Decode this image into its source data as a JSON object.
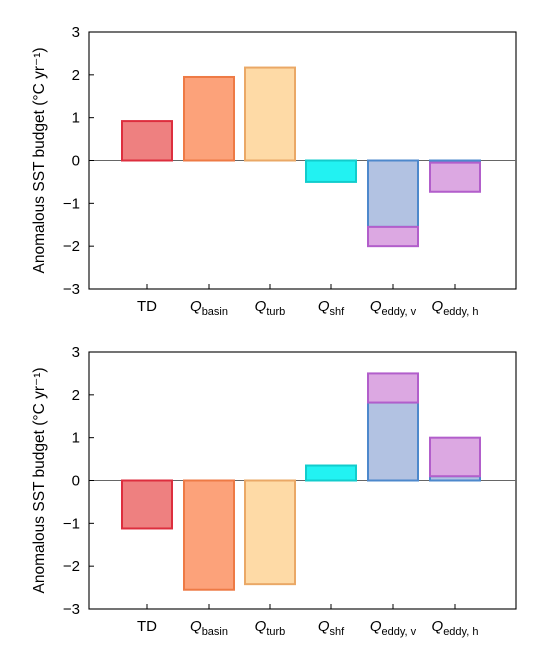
{
  "chart_data": [
    {
      "type": "bar",
      "title": "",
      "xlabel": "",
      "ylabel": "Anomalous SST budget (°C yr⁻¹)",
      "ylim": [
        -3,
        3
      ],
      "yticks": [
        -3,
        -2,
        -1,
        0,
        1,
        2,
        3
      ],
      "grid": false,
      "zero_line": true,
      "categories": [
        {
          "main": "TD",
          "sub": "",
          "italic": false
        },
        {
          "main": "Q",
          "sub": "basin",
          "italic": true
        },
        {
          "main": "Q",
          "sub": "turb",
          "italic": true
        },
        {
          "main": "Q",
          "sub": "shf",
          "italic": true
        },
        {
          "main": "Q",
          "sub": "eddy, v",
          "italic": true
        },
        {
          "main": "Q",
          "sub": "eddy, h",
          "italic": true
        }
      ],
      "bars": [
        {
          "segments": [
            {
              "value": 0.92,
              "fill": "#ee8080",
              "stroke": "#dd2e3e"
            }
          ]
        },
        {
          "segments": [
            {
              "value": 1.95,
              "fill": "#fca27a",
              "stroke": "#ee7a45"
            }
          ]
        },
        {
          "segments": [
            {
              "value": 2.17,
              "fill": "#fedaa6",
              "stroke": "#eaa866"
            }
          ]
        },
        {
          "segments": [
            {
              "value": -0.5,
              "fill": "#22f2f2",
              "stroke": "#12cccc"
            }
          ]
        },
        {
          "segments": [
            {
              "value": -1.55,
              "fill": "#b2c2e2",
              "stroke": "#4d88cc"
            },
            {
              "value": -0.45,
              "fill": "#dca8e2",
              "stroke": "#b25ecb"
            }
          ]
        },
        {
          "segments": [
            {
              "value": -0.05,
              "fill": "#b2c2e2",
              "stroke": "#4d88cc"
            },
            {
              "value": -0.68,
              "fill": "#dca8e2",
              "stroke": "#b25ecb"
            }
          ]
        }
      ]
    },
    {
      "type": "bar",
      "title": "",
      "xlabel": "",
      "ylabel": "Anomalous SST budget (°C yr⁻¹)",
      "ylim": [
        -3,
        3
      ],
      "yticks": [
        -3,
        -2,
        -1,
        0,
        1,
        2,
        3
      ],
      "grid": false,
      "zero_line": true,
      "categories": [
        {
          "main": "TD",
          "sub": "",
          "italic": false
        },
        {
          "main": "Q",
          "sub": "basin",
          "italic": true
        },
        {
          "main": "Q",
          "sub": "turb",
          "italic": true
        },
        {
          "main": "Q",
          "sub": "shf",
          "italic": true
        },
        {
          "main": "Q",
          "sub": "eddy, v",
          "italic": true
        },
        {
          "main": "Q",
          "sub": "eddy, h",
          "italic": true
        }
      ],
      "bars": [
        {
          "segments": [
            {
              "value": -1.12,
              "fill": "#ee8080",
              "stroke": "#dd2e3e"
            }
          ]
        },
        {
          "segments": [
            {
              "value": -2.55,
              "fill": "#fca27a",
              "stroke": "#ee7a45"
            }
          ]
        },
        {
          "segments": [
            {
              "value": -2.42,
              "fill": "#fedaa6",
              "stroke": "#eaa866"
            }
          ]
        },
        {
          "segments": [
            {
              "value": 0.35,
              "fill": "#22f2f2",
              "stroke": "#12cccc"
            }
          ]
        },
        {
          "segments": [
            {
              "value": 1.82,
              "fill": "#b2c2e2",
              "stroke": "#4d88cc"
            },
            {
              "value": 0.68,
              "fill": "#dca8e2",
              "stroke": "#b25ecb"
            }
          ]
        },
        {
          "segments": [
            {
              "value": 0.1,
              "fill": "#b2c2e2",
              "stroke": "#4d88cc"
            },
            {
              "value": 0.9,
              "fill": "#dca8e2",
              "stroke": "#b25ecb"
            }
          ]
        }
      ]
    }
  ]
}
